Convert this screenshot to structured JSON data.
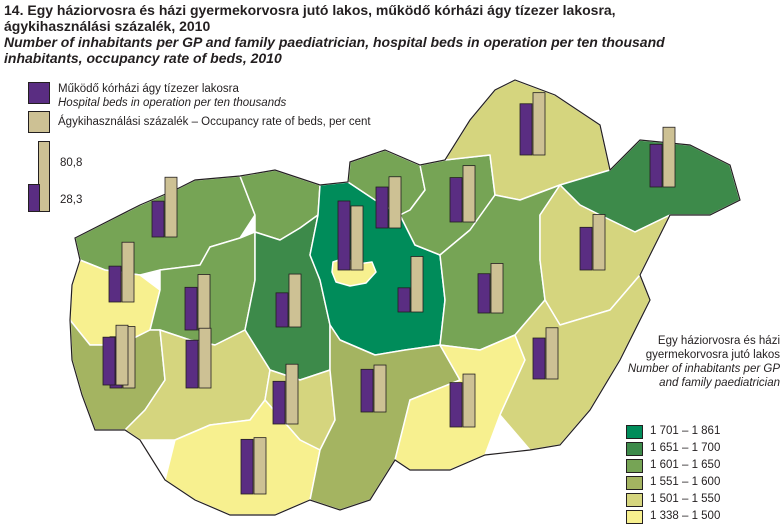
{
  "title": {
    "hu": "14. Egy háziorvosra és házi gyermekorvosra jutó lakos, működő kórházi ágy tízezer lakosra, ágykihasználási százalék, 2010",
    "en": "Number of inhabitants per GP and family paediatrician, hospital beds in operation per ten thousand inhabitants, occupancy rate of beds, 2010"
  },
  "bar_legend": {
    "beds_hu": "Működő kórházi ágy tízezer lakosra",
    "beds_en": "Hospital beds in operation per ten thousands",
    "occupancy": "Ágykihasználási százalék – Occupancy rate of beds, per cent",
    "scale_max_label": "80,8",
    "scale_min_label": "28,3",
    "scale_max": 80.8,
    "scale_min": 28.3
  },
  "choropleth_legend": {
    "title_hu": "Egy háziorvosra és házi gyermekorvosra jutó lakos",
    "title_en": "Number of inhabitants per GP and family paediatrician",
    "classes": [
      {
        "label": "1 701 – 1 861",
        "color": "#008c5a"
      },
      {
        "label": "1 651 – 1 700",
        "color": "#3d8a4a"
      },
      {
        "label": "1 601 – 1 650",
        "color": "#76a455"
      },
      {
        "label": "1 551 – 1 600",
        "color": "#a4b461"
      },
      {
        "label": "1 501 – 1 550",
        "color": "#d5d57e"
      },
      {
        "label": "1 338 – 1 500",
        "color": "#f7f08f"
      }
    ]
  },
  "colors": {
    "beds": "#5a2d82",
    "occupancy": "#cdc194",
    "outline": "#231f20"
  },
  "regions": [
    {
      "name": "gyor-moson-sopron",
      "class": 2,
      "beds": 42,
      "occupancy": 70
    },
    {
      "name": "komarom-esztergom",
      "class": 2,
      "beds": 42,
      "occupancy": 70
    },
    {
      "name": "vas",
      "class": 5,
      "beds": 60,
      "occupancy": 72
    },
    {
      "name": "veszprem",
      "class": 2,
      "beds": 50,
      "occupancy": 65
    },
    {
      "name": "fejer",
      "class": 1,
      "beds": 40,
      "occupancy": 62
    },
    {
      "name": "budapest",
      "class": 5,
      "beds": 80.8,
      "occupancy": 75
    },
    {
      "name": "pest",
      "class": 0,
      "beds": 28.3,
      "occupancy": 65
    },
    {
      "name": "nograd",
      "class": 2,
      "beds": 48,
      "occupancy": 60
    },
    {
      "name": "heves",
      "class": 2,
      "beds": 52,
      "occupancy": 66
    },
    {
      "name": "borsod-abauj-zemplen",
      "class": 4,
      "beds": 60,
      "occupancy": 73
    },
    {
      "name": "szabolcs-szatmar-bereg",
      "class": 1,
      "beds": 50,
      "occupancy": 70
    },
    {
      "name": "jasz-nagykun-szolnok",
      "class": 2,
      "beds": 46,
      "occupancy": 58
    },
    {
      "name": "hajdu-bihar",
      "class": 4,
      "beds": 50,
      "occupancy": 65
    },
    {
      "name": "zala",
      "class": 3,
      "beds": 56,
      "occupancy": 70
    },
    {
      "name": "somogy",
      "class": 4,
      "beds": 56,
      "occupancy": 70
    },
    {
      "name": "tolna",
      "class": 4,
      "beds": 50,
      "occupancy": 70
    },
    {
      "name": "baranya",
      "class": 5,
      "beds": 64,
      "occupancy": 66
    },
    {
      "name": "bacs-kiskun",
      "class": 3,
      "beds": 50,
      "occupancy": 55
    },
    {
      "name": "csongrad",
      "class": 5,
      "beds": 52,
      "occupancy": 62
    },
    {
      "name": "bekes",
      "class": 4,
      "beds": 48,
      "occupancy": 60
    }
  ]
}
